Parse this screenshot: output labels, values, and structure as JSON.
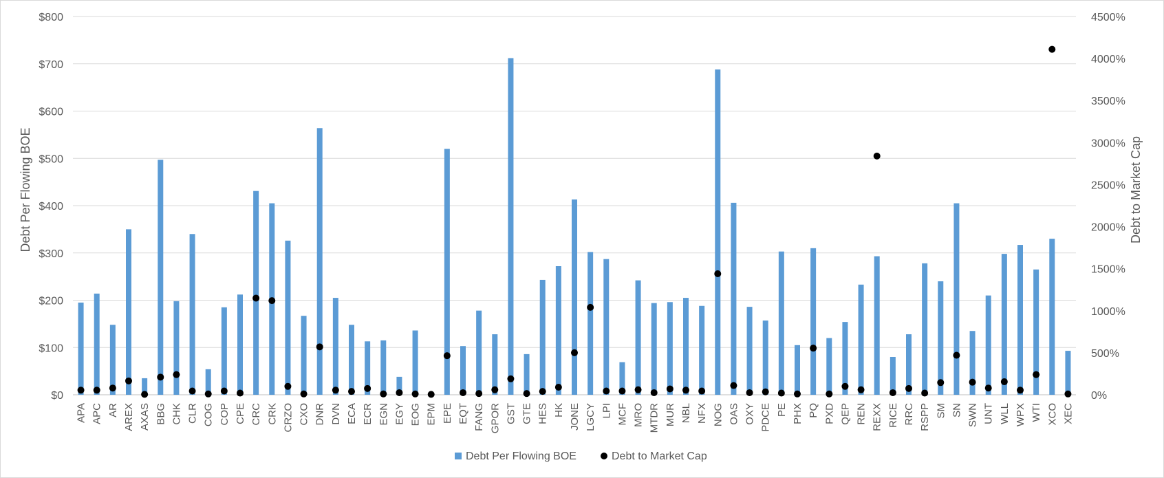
{
  "chart_data": {
    "type": "bar",
    "categories": [
      "APA",
      "APC",
      "AR",
      "AREX",
      "AXAS",
      "BBG",
      "CHK",
      "CLR",
      "COG",
      "COP",
      "CPE",
      "CRC",
      "CRK",
      "CRZO",
      "CXO",
      "DNR",
      "DVN",
      "ECA",
      "ECR",
      "EGN",
      "EGY",
      "EOG",
      "EPM",
      "EPE",
      "EQT",
      "FANG",
      "GPOR",
      "GST",
      "GTE",
      "HES",
      "HK",
      "JONE",
      "LGCY",
      "LPI",
      "MCF",
      "MRO",
      "MTDR",
      "MUR",
      "NBL",
      "NFX",
      "NOG",
      "OAS",
      "OXY",
      "PDCE",
      "PE",
      "PHX",
      "PQ",
      "PXD",
      "QEP",
      "REN",
      "REXX",
      "RICE",
      "RRC",
      "RSPP",
      "SM",
      "SN",
      "SWN",
      "UNT",
      "WLL",
      "WPX",
      "WTI",
      "XCO",
      "XEC"
    ],
    "series": [
      {
        "name": "Debt Per Flowing BOE",
        "type": "bar",
        "axis": "left",
        "color": "#5b9bd5",
        "values": [
          195,
          214,
          148,
          350,
          35,
          497,
          198,
          340,
          54,
          185,
          212,
          431,
          405,
          326,
          167,
          564,
          205,
          148,
          113,
          115,
          38,
          136,
          1,
          520,
          103,
          178,
          128,
          712,
          86,
          243,
          272,
          413,
          302,
          287,
          69,
          242,
          194,
          196,
          205,
          188,
          688,
          406,
          186,
          157,
          303,
          105,
          310,
          120,
          154,
          233,
          293,
          80,
          128,
          278,
          240,
          405,
          135,
          210,
          298,
          317,
          265,
          330,
          93
        ]
      },
      {
        "name": "Debt to Market Cap",
        "type": "scatter",
        "axis": "right",
        "color": "#000000",
        "values": [
          55,
          55,
          80,
          165,
          5,
          210,
          240,
          45,
          10,
          45,
          20,
          1150,
          1120,
          100,
          10,
          570,
          55,
          40,
          75,
          10,
          25,
          10,
          5,
          465,
          25,
          15,
          60,
          190,
          15,
          40,
          90,
          500,
          1040,
          45,
          45,
          60,
          25,
          70,
          55,
          45,
          1440,
          110,
          25,
          35,
          20,
          10,
          555,
          10,
          100,
          60,
          2840,
          25,
          75,
          20,
          145,
          470,
          150,
          80,
          155,
          55,
          240,
          4110,
          10
        ]
      }
    ],
    "ylabel": "Debt Per Flowing BOE",
    "y2label": "Debt to Market Cap",
    "ylim": [
      0,
      800
    ],
    "y2lim": [
      0,
      4500
    ],
    "yticks": [
      "$0",
      "$100",
      "$200",
      "$300",
      "$400",
      "$500",
      "$600",
      "$700",
      "$800"
    ],
    "y2ticks": [
      "0%",
      "500%",
      "1000%",
      "1500%",
      "2000%",
      "2500%",
      "3000%",
      "3500%",
      "4000%",
      "4500%"
    ],
    "grid": true,
    "legend": "bottom-center"
  }
}
